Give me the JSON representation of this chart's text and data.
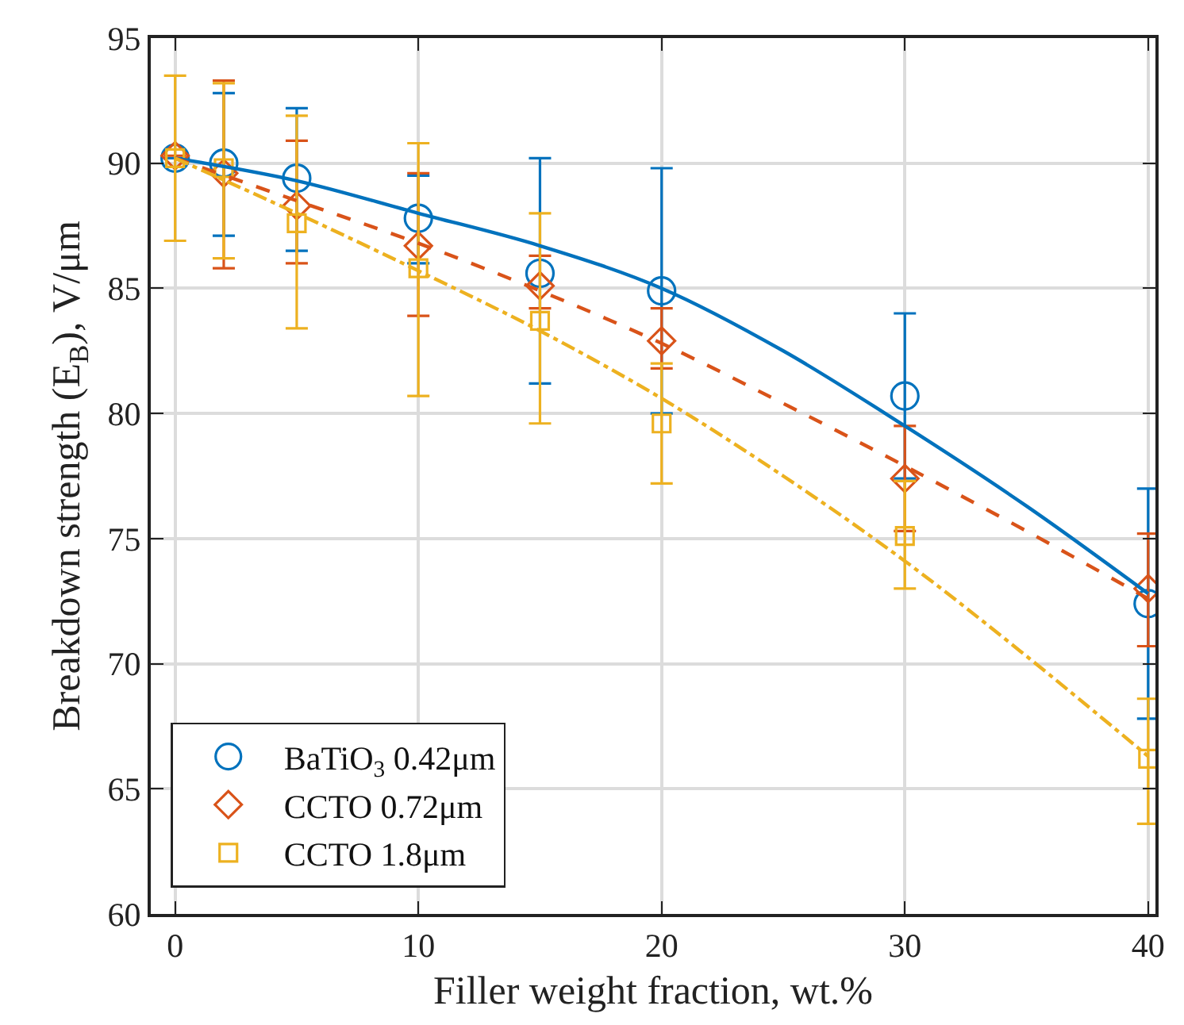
{
  "chart_data": {
    "type": "scatter",
    "xlabel": "Filler weight fraction, wt.%",
    "ylabel": "Breakdown strength (E$_{B}$), V/μm",
    "x": [
      0,
      2,
      5,
      10,
      15,
      20,
      30,
      40
    ],
    "xlim": [
      -1,
      40.3
    ],
    "xticks": [
      0,
      10,
      20,
      30,
      40
    ],
    "ylim": [
      60,
      95
    ],
    "yticks": [
      60,
      65,
      70,
      75,
      80,
      85,
      90,
      95
    ],
    "grid": true,
    "legend": "bottom left",
    "series": [
      {
        "name": "BaTiO$_{3}$ 0.42μm",
        "color": "#0072bd",
        "marker": "circle",
        "values": [
          90.2,
          90.0,
          89.4,
          87.8,
          85.6,
          84.9,
          80.7,
          72.4
        ],
        "errors": [
          null,
          [
            87.1,
            92.8
          ],
          [
            86.5,
            92.2
          ],
          [
            86.0,
            89.5
          ],
          [
            81.2,
            90.2
          ],
          [
            80.0,
            89.8
          ],
          [
            77.4,
            84.0
          ],
          [
            67.8,
            77.0
          ]
        ]
      },
      {
        "name": "CCTO 0.72μm",
        "color": "#d95319",
        "marker": "diamond",
        "values": [
          90.3,
          89.6,
          88.3,
          86.7,
          85.1,
          82.9,
          77.4,
          73.0
        ],
        "errors": [
          null,
          [
            85.8,
            93.3
          ],
          [
            86.0,
            90.9
          ],
          [
            83.9,
            89.6
          ],
          [
            84.2,
            86.3
          ],
          [
            81.8,
            84.2
          ],
          [
            75.3,
            79.5
          ],
          [
            70.7,
            75.2
          ]
        ]
      },
      {
        "name": "CCTO 1.8μm",
        "color": "#edb120",
        "marker": "square",
        "values": [
          90.2,
          89.8,
          87.6,
          85.8,
          83.7,
          79.6,
          75.1,
          66.2
        ],
        "errors": [
          [
            86.9,
            93.5
          ],
          [
            86.2,
            93.2
          ],
          [
            83.4,
            91.9
          ],
          [
            80.7,
            90.8
          ],
          [
            79.6,
            88.0
          ],
          [
            77.2,
            82.0
          ],
          [
            73.0,
            77.3
          ],
          [
            63.6,
            68.6
          ]
        ]
      },
      {
        "type": "line",
        "color": "#0072bd",
        "line_style": "solid",
        "marker": "none",
        "x": [
          0,
          5,
          10,
          15,
          20,
          25,
          30,
          35,
          40
        ],
        "values": [
          90.2,
          89.3,
          88.0,
          86.7,
          85.0,
          82.5,
          79.5,
          76.3,
          72.8
        ]
      },
      {
        "type": "line",
        "color": "#d95319",
        "line_style": "dashed",
        "marker": "none",
        "x": [
          0,
          5,
          10,
          15,
          20,
          25,
          30,
          35,
          40
        ],
        "values": [
          90.2,
          88.5,
          86.8,
          84.9,
          82.8,
          80.4,
          77.9,
          75.3,
          72.6
        ]
      },
      {
        "type": "line",
        "color": "#edb120",
        "line_style": "dotted",
        "marker": "none",
        "x": [
          0,
          5,
          10,
          15,
          20,
          25,
          30,
          35,
          40
        ],
        "values": [
          90.2,
          88.0,
          85.7,
          83.3,
          80.6,
          77.5,
          74.1,
          70.3,
          66.3
        ]
      }
    ]
  }
}
